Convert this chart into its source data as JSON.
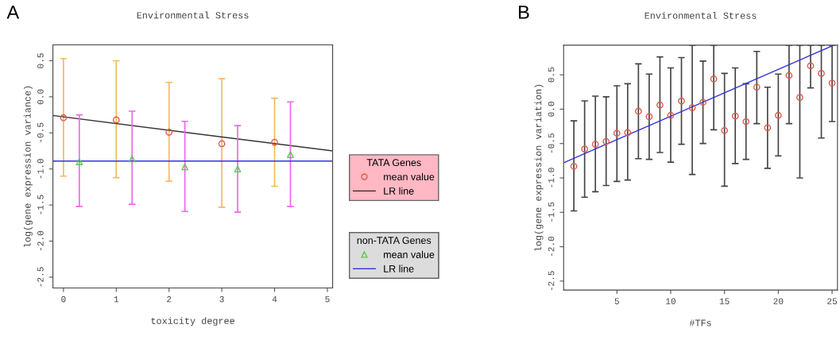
{
  "chart_data": [
    {
      "type": "scatter",
      "title": "Environmental Stress",
      "xlabel": "toxicity degree",
      "ylabel": "log(gene expression variance)",
      "annotations": [
        "A"
      ],
      "xlim": [
        -0.2,
        5.1
      ],
      "ylim": [
        -2.65,
        0.72
      ],
      "xticks": [
        0,
        1,
        2,
        3,
        4,
        5
      ],
      "yticks": [
        {
          "value": -2.5,
          "label": "-2.5"
        },
        {
          "value": -2.0,
          "label": "-2.0"
        },
        {
          "value": -1.5,
          "label": "-1.5"
        },
        {
          "value": -1.0,
          "label": "-1.0"
        },
        {
          "value": -0.5,
          "label": "-0.5"
        },
        {
          "value": 0.0,
          "label": "0.0"
        },
        {
          "value": 0.5,
          "label": "0.5"
        }
      ],
      "legend": "right",
      "legend_title": [
        "TATA Genes",
        "non-TATA Genes"
      ],
      "grid": false,
      "series": [
        {
          "name": "mean value",
          "type": "scatter",
          "marker": "circle",
          "color": "#e05a4a",
          "x": [
            0,
            1,
            2,
            3,
            4
          ],
          "values": [
            -0.29,
            -0.32,
            -0.49,
            -0.65,
            -0.63
          ],
          "errors": [
            [
              -1.1,
              0.53
            ],
            [
              -1.12,
              0.5
            ],
            [
              -1.17,
              0.2
            ],
            [
              -1.53,
              0.25
            ],
            [
              -1.24,
              -0.02
            ]
          ]
        },
        {
          "name": "LR line",
          "type": "line",
          "marker": "none",
          "color": "#333333",
          "x": [
            -0.2,
            5.1
          ],
          "values": [
            -0.26,
            -0.75
          ]
        },
        {
          "name": "mean value",
          "type": "scatter",
          "marker": "triangle",
          "color": "#55cc55",
          "x": [
            0.3,
            1.3,
            2.3,
            3.3,
            4.3
          ],
          "values": [
            -0.9,
            -0.86,
            -0.97,
            -1.0,
            -0.8
          ],
          "errors": [
            [
              -1.52,
              -0.25
            ],
            [
              -1.49,
              -0.2
            ],
            [
              -1.59,
              -0.34
            ],
            [
              -1.6,
              -0.4
            ],
            [
              -1.52,
              -0.07
            ]
          ]
        },
        {
          "name": "LR line",
          "type": "line",
          "marker": "none",
          "color": "#3333dd",
          "x": [
            -0.2,
            5.1
          ],
          "values": [
            -0.89,
            -0.89
          ]
        }
      ]
    },
    {
      "type": "scatter",
      "title": "Environmental Stress",
      "xlabel": "#TFs",
      "ylabel": "log(gene expression variation)",
      "annotations": [
        "B"
      ],
      "xlim": [
        0.05,
        25.5
      ],
      "ylim": [
        -2.63,
        0.93
      ],
      "xticks": [
        5,
        10,
        15,
        20,
        25
      ],
      "yticks": [
        {
          "value": -2.5,
          "label": "-2.5"
        },
        {
          "value": -2.0,
          "label": "-2.0"
        },
        {
          "value": -1.5,
          "label": "-1.5"
        },
        {
          "value": -1.0,
          "label": "-1.0"
        },
        {
          "value": -0.5,
          "label": "-0.5"
        },
        {
          "value": 0.0,
          "label": "0.0"
        },
        {
          "value": 0.5,
          "label": "0.5"
        }
      ],
      "grid": false,
      "series": [
        {
          "type": "scatter",
          "marker": "circle",
          "color": "#e05a4a",
          "x": [
            1,
            2,
            3,
            4,
            5,
            6,
            7,
            8,
            9,
            10,
            11,
            12,
            13,
            14,
            15,
            16,
            17,
            18,
            19,
            20,
            21,
            22,
            23,
            24,
            25
          ],
          "values": [
            -0.83,
            -0.58,
            -0.51,
            -0.47,
            -0.35,
            -0.34,
            -0.03,
            -0.11,
            0.06,
            -0.09,
            0.12,
            0.02,
            0.1,
            0.44,
            -0.31,
            -0.1,
            -0.18,
            0.32,
            -0.27,
            -0.09,
            0.49,
            0.17,
            0.63,
            0.52,
            0.38
          ],
          "errors": [
            [
              -1.48,
              -0.17
            ],
            [
              -1.28,
              0.12
            ],
            [
              -1.2,
              0.19
            ],
            [
              -1.11,
              0.18
            ],
            [
              -1.05,
              0.34
            ],
            [
              -1.03,
              0.37
            ],
            [
              -0.72,
              0.66
            ],
            [
              -0.73,
              0.51
            ],
            [
              -0.63,
              0.76
            ],
            [
              -0.77,
              0.6
            ],
            [
              -0.51,
              0.75
            ],
            [
              -0.95,
              0.93
            ],
            [
              -0.5,
              0.7
            ],
            [
              -0.3,
              0.93
            ],
            [
              -1.12,
              0.52
            ],
            [
              -0.79,
              0.6
            ],
            [
              -0.73,
              0.37
            ],
            [
              -0.21,
              0.84
            ],
            [
              -0.86,
              0.32
            ],
            [
              -0.68,
              0.51
            ],
            [
              -0.21,
              0.93
            ],
            [
              -1.0,
              0.93
            ],
            [
              0.31,
              0.93
            ],
            [
              -0.42,
              0.93
            ],
            [
              -0.18,
              0.93
            ]
          ]
        },
        {
          "type": "line",
          "marker": "none",
          "color": "#3333dd",
          "x": [
            0.05,
            25.0
          ],
          "values": [
            -0.78,
            0.92
          ]
        }
      ]
    }
  ]
}
